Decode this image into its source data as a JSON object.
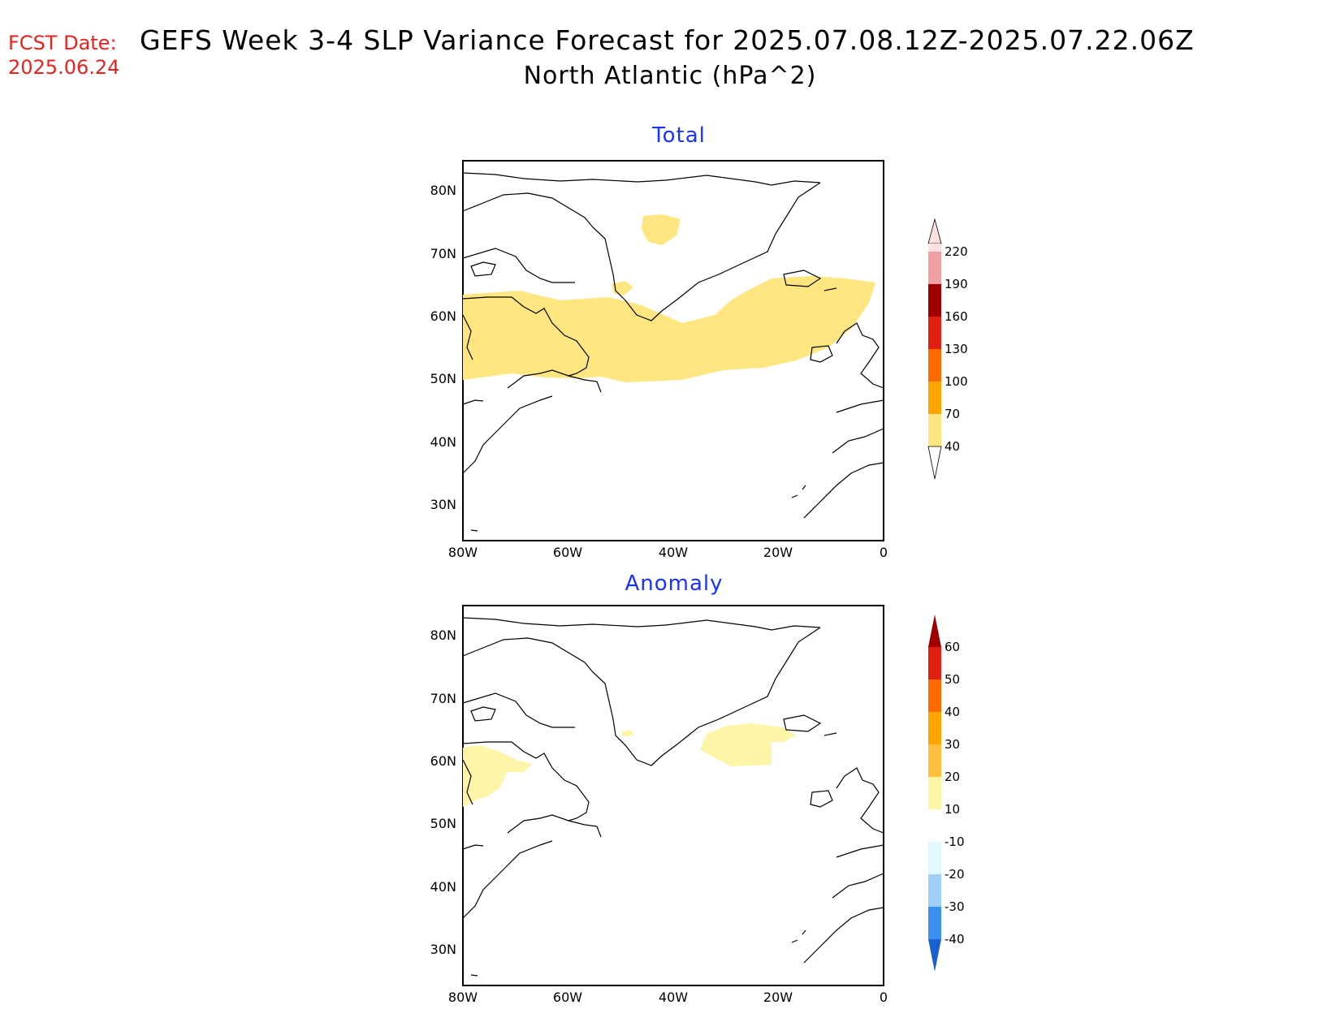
{
  "header": {
    "fcst_label": "FCST Date:",
    "fcst_date": "2025.06.24",
    "title": "GEFS Week 3-4 SLP Variance Forecast for 2025.07.08.12Z-2025.07.22.06Z",
    "subtitle": "North Atlantic (hPa^2)"
  },
  "panels": [
    {
      "title": "Total",
      "lat_ticks": [
        "80N",
        "70N",
        "60N",
        "50N",
        "40N",
        "30N"
      ],
      "lon_ticks": [
        "80W",
        "60W",
        "40W",
        "20W",
        "0"
      ],
      "colorbar": {
        "levels": [
          "40",
          "70",
          "100",
          "130",
          "160",
          "190",
          "220"
        ],
        "colors": [
          "#ffe680",
          "#ffa500",
          "#ff6a00",
          "#e02010",
          "#a00000",
          "#f0a0a0",
          "#ffe0e0"
        ]
      }
    },
    {
      "title": "Anomaly",
      "lat_ticks": [
        "80N",
        "70N",
        "60N",
        "50N",
        "40N",
        "30N"
      ],
      "lon_ticks": [
        "80W",
        "60W",
        "40W",
        "20W",
        "0"
      ],
      "colorbar": {
        "levels": [
          "60",
          "50",
          "40",
          "30",
          "20",
          "10",
          "-10",
          "-20",
          "-30",
          "-40"
        ],
        "colors": [
          "#a00000",
          "#e02010",
          "#ff6a00",
          "#ffa500",
          "#ffc040",
          "#fff5a8",
          "#ffffff",
          "#e0f8ff",
          "#a0d0f8",
          "#3c90f0",
          "#1a60d0"
        ]
      }
    }
  ]
}
